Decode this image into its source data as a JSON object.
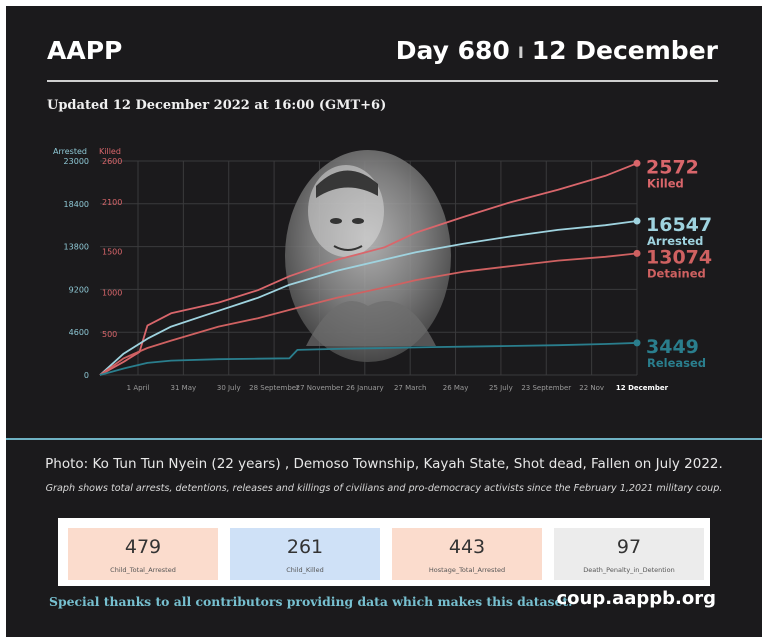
{
  "header": {
    "org": "AAPP",
    "day": "Day 680",
    "separator": "I",
    "date": "12 December",
    "updated": "Updated 12 December 2022 at 16:00 (GMT+6)"
  },
  "colors": {
    "killed": "#d9666b",
    "arrested": "#9fd3df",
    "detained": "#cf6161",
    "released": "#2a7e8d",
    "background": "#1b1a1c"
  },
  "chart_data": {
    "type": "line",
    "x_ticks": [
      "1 April",
      "31 May",
      "30 July",
      "28 September",
      "27 November",
      "26 January",
      "27 March",
      "26 May",
      "25 July",
      "23 September",
      "22 Nov",
      "12 December"
    ],
    "left_axis_title": "Arrested",
    "right_axis_title": "Killed",
    "arrested_axis_ticks": [
      "0",
      "4600",
      "9200",
      "13800",
      "18400",
      "23000"
    ],
    "killed_axis_ticks": [
      "500",
      "1000",
      "1500",
      "2100",
      "2600"
    ],
    "arrested_axis_range": [
      0,
      23000
    ],
    "killed_axis_range": [
      0,
      2600
    ],
    "x_range_days": [
      0,
      680
    ],
    "grid": true,
    "series": [
      {
        "name": "Killed",
        "axis": "killed",
        "color_key": "killed",
        "final_label": "2572",
        "points": [
          [
            0,
            0
          ],
          [
            30,
            160
          ],
          [
            50,
            280
          ],
          [
            60,
            600
          ],
          [
            90,
            750
          ],
          [
            150,
            880
          ],
          [
            200,
            1030
          ],
          [
            240,
            1200
          ],
          [
            300,
            1400
          ],
          [
            360,
            1550
          ],
          [
            400,
            1730
          ],
          [
            460,
            1920
          ],
          [
            520,
            2100
          ],
          [
            580,
            2250
          ],
          [
            640,
            2420
          ],
          [
            680,
            2572
          ]
        ]
      },
      {
        "name": "Arrested",
        "axis": "arrested",
        "color_key": "arrested",
        "final_label": "16547",
        "points": [
          [
            0,
            0
          ],
          [
            30,
            2300
          ],
          [
            60,
            3900
          ],
          [
            90,
            5200
          ],
          [
            150,
            6900
          ],
          [
            200,
            8300
          ],
          [
            240,
            9700
          ],
          [
            300,
            11200
          ],
          [
            360,
            12400
          ],
          [
            400,
            13200
          ],
          [
            460,
            14100
          ],
          [
            520,
            14900
          ],
          [
            580,
            15600
          ],
          [
            640,
            16100
          ],
          [
            680,
            16547
          ]
        ]
      },
      {
        "name": "Detained",
        "axis": "arrested",
        "color_key": "detained",
        "final_label": "13074",
        "points": [
          [
            0,
            0
          ],
          [
            30,
            1800
          ],
          [
            60,
            2900
          ],
          [
            90,
            3700
          ],
          [
            150,
            5200
          ],
          [
            200,
            6100
          ],
          [
            240,
            7000
          ],
          [
            300,
            8300
          ],
          [
            360,
            9400
          ],
          [
            400,
            10200
          ],
          [
            460,
            11100
          ],
          [
            520,
            11700
          ],
          [
            580,
            12300
          ],
          [
            640,
            12700
          ],
          [
            680,
            13074
          ]
        ]
      },
      {
        "name": "Released",
        "axis": "arrested",
        "color_key": "released",
        "final_label": "3449",
        "points": [
          [
            0,
            0
          ],
          [
            30,
            700
          ],
          [
            60,
            1300
          ],
          [
            90,
            1550
          ],
          [
            150,
            1700
          ],
          [
            200,
            1750
          ],
          [
            240,
            1800
          ],
          [
            250,
            2700
          ],
          [
            300,
            2800
          ],
          [
            360,
            2900
          ],
          [
            420,
            3000
          ],
          [
            500,
            3100
          ],
          [
            580,
            3200
          ],
          [
            640,
            3330
          ],
          [
            680,
            3449
          ]
        ]
      }
    ],
    "photo_alt": "Ko Tun Tun Nyein"
  },
  "caption": "Photo: Ko Tun Tun Nyein (22 years) , Demoso Township, Kayah State, Shot dead, Fallen on July 2022.",
  "note": "Graph shows total arrests, detentions, releases and killings of civilians and pro-democracy activists since the February 1,2021 military coup.",
  "kpis": [
    {
      "value": "479",
      "label": "Child_Total_Arrested",
      "bg": "#fbdccd"
    },
    {
      "value": "261",
      "label": "Child_Killed",
      "bg": "#cfe1f7"
    },
    {
      "value": "443",
      "label": "Hostage_Total_Arrested",
      "bg": "#fbdccd"
    },
    {
      "value": "97",
      "label": "Death_Penalty_in_Detention",
      "bg": "#ececec"
    }
  ],
  "footer": {
    "thanks": "Special thanks to all contributors providing data which makes this dataset.",
    "site": "coup.aappb.org"
  }
}
